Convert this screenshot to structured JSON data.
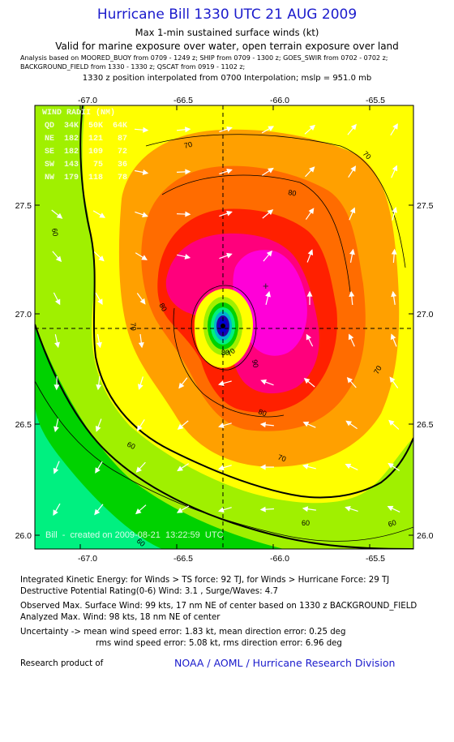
{
  "header": {
    "title": "Hurricane Bill 1330 UTC 21 AUG 2009",
    "subtitle": "Max 1-min sustained surface winds (kt)",
    "valid_line": "Valid for marine exposure over water, open terrain exposure over land",
    "analysis_line1": "Analysis based on  MOORED_BUOY from 0709 - 1249 z;  SHIP from 0709 - 1300 z;  GOES_SWIR from 0702 - 0702 z;",
    "analysis_line2": "BACKGROUND_FIELD from 1330 - 1330 z;  QSCAT from 0919 - 1102 z;",
    "position_line": "1330 z position interpolated from 0700 Interpolation; mslp = 951.0 mb"
  },
  "map": {
    "lon_ticks": [
      "-67.0",
      "-66.5",
      "-66.0",
      "-65.5"
    ],
    "lat_ticks": [
      "27.5",
      "27.0",
      "26.5",
      "26.0"
    ],
    "wind_radii": {
      "title": "WIND RADII (NM)",
      "header": "QD  34K  50K  64K",
      "rows": [
        "NE  182  121   87",
        "SE  182  109   72",
        "SW  143   75   36",
        "NW  179  118   78"
      ]
    },
    "contour_labels": [
      "70",
      "80",
      "70",
      "60",
      "80",
      "70",
      "90",
      "80",
      "70",
      "60",
      "70",
      "60",
      "60",
      "60",
      "80",
      "70"
    ],
    "credit": "Bill  -  created on 2009-08-21  13:22:59  UTC",
    "colors": {
      "c40": "#00f080",
      "c50": "#00d200",
      "c60": "#a0f000",
      "c70": "#ffff00",
      "c80": "#ffa000",
      "c90": "#ff6c00",
      "c100": "#ff2000",
      "c110": "#ff007c",
      "c120": "#ff00d8",
      "eye": "#1e00a8"
    }
  },
  "footer": {
    "ike": "Integrated Kinetic Energy:  for Winds > TS force: 92 TJ,  for Winds > Hurricane Force: 29 TJ",
    "dpr": "Destructive Potential Rating(0-6)   Wind: 3.1 , Surge/Waves: 4.7",
    "obs_max": "Observed Max. Surface Wind: 99 kts, 17 nm NE of center based on 1330 z BACKGROUND_FIELD",
    "ana_max": "Analyzed Max. Wind: 98 kts, 18 nm NE of center",
    "unc1": "Uncertainty -> mean wind speed error: 1.83 kt,   mean direction error: 0.25 deg",
    "unc2": "rms wind speed error: 5.08 kt,   rms direction error: 6.96 deg",
    "research": "Research product of",
    "org": "NOAA / AOML / Hurricane Research Division"
  }
}
